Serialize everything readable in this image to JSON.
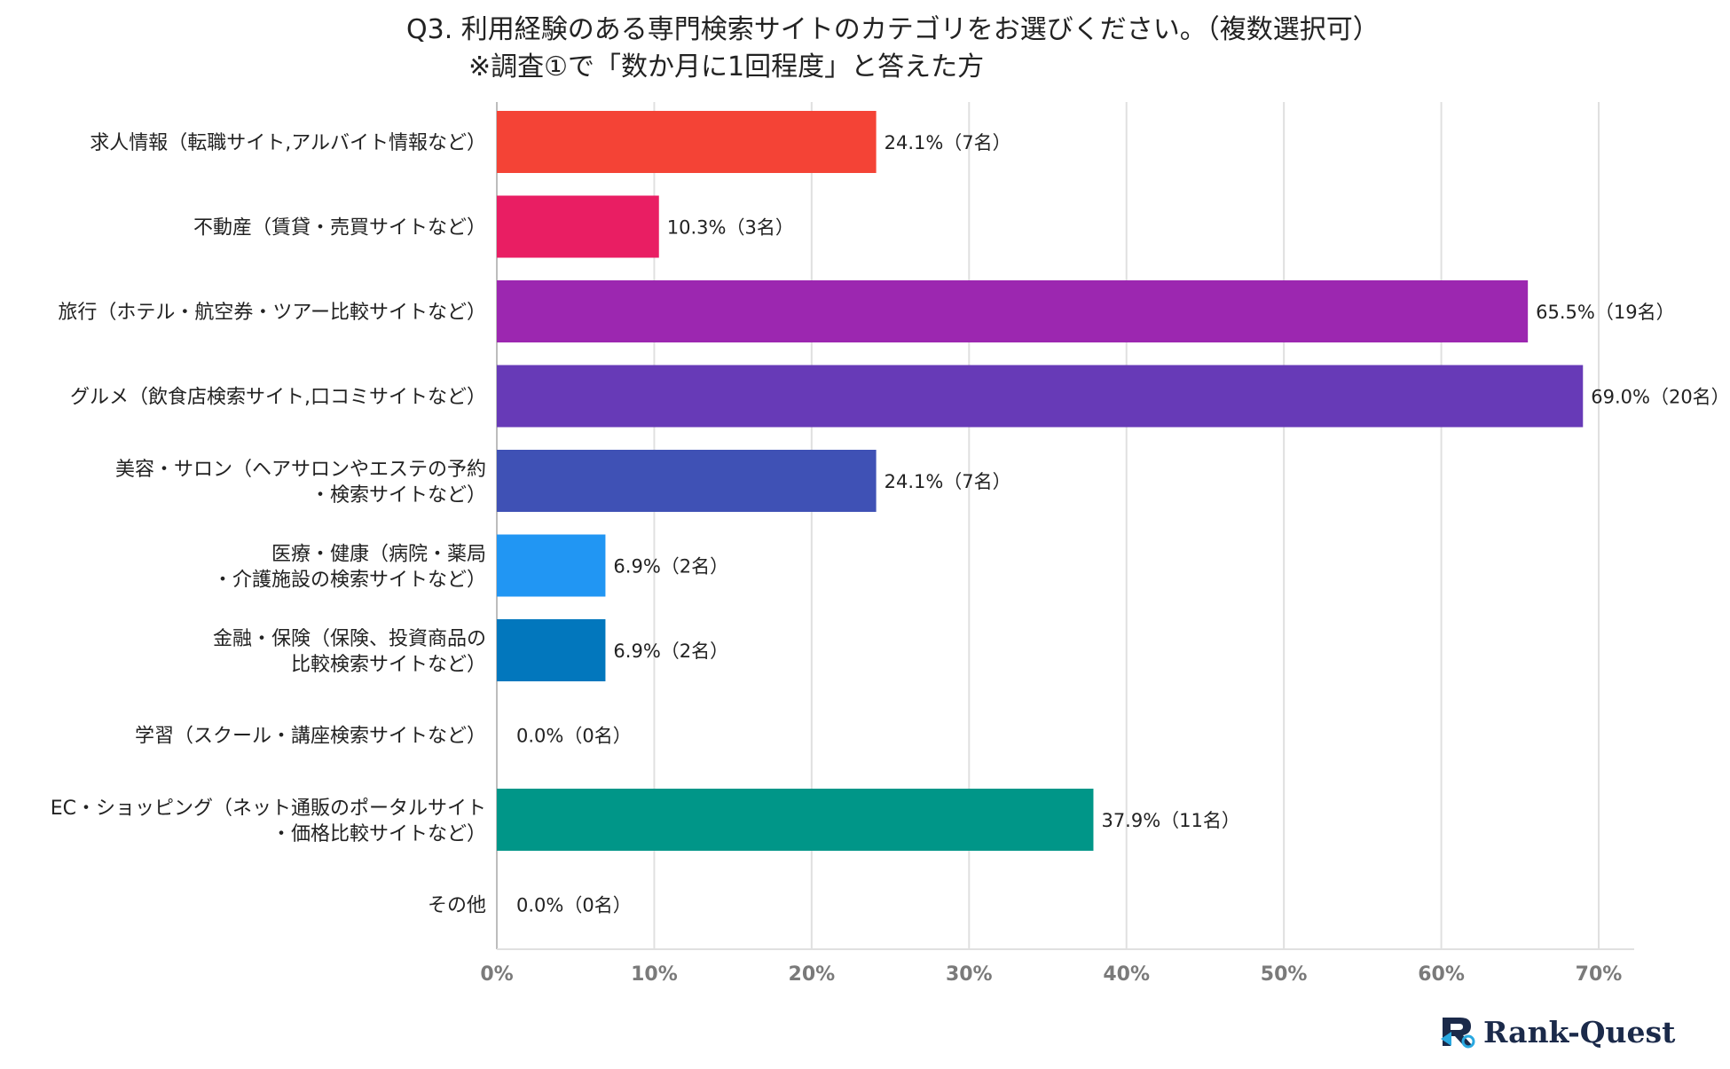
{
  "chart_data": {
    "type": "bar",
    "orientation": "horizontal",
    "title": "Q3. 利用経験のある専門検索サイトのカテゴリをお選びください。（複数選択可）",
    "subtitle": "※調査①で「数か月に1回程度」と答えた方",
    "categories": [
      [
        "求人情報（転職サイト,アルバイト情報など）"
      ],
      [
        "不動産（賃貸・売買サイトなど）"
      ],
      [
        "旅行（ホテル・航空券・ツアー比較サイトなど）"
      ],
      [
        "グルメ（飲食店検索サイト,口コミサイトなど）"
      ],
      [
        "美容・サロン（ヘアサロンやエステの予約",
        "・検索サイトなど）"
      ],
      [
        "医療・健康（病院・薬局",
        "・介護施設の検索サイトなど）"
      ],
      [
        "金融・保険（保険、投資商品の",
        "比較検索サイトなど）"
      ],
      [
        "学習（スクール・講座検索サイトなど）"
      ],
      [
        "EC・ショッピング（ネット通販のポータルサイト",
        "・価格比較サイトなど）"
      ],
      [
        "その他"
      ]
    ],
    "values": [
      24.1,
      10.3,
      65.5,
      69.0,
      24.1,
      6.9,
      6.9,
      0.0,
      37.9,
      0.0
    ],
    "data_labels": [
      "24.1%（7名）",
      "10.3%（3名）",
      "65.5%（19名）",
      "69.0%（20名）",
      "24.1%（7名）",
      "6.9%（2名）",
      "6.9%（2名）",
      "0.0%（0名）",
      "37.9%（11名）",
      "0.0%（0名）"
    ],
    "colors": [
      "#f44336",
      "#e91e63",
      "#9c27b0",
      "#673ab7",
      "#3f51b5",
      "#2196f3",
      "#0277bd",
      "#009688",
      "#009688",
      "#009688"
    ],
    "xlim": [
      0,
      70
    ],
    "ticks": [
      0,
      10,
      20,
      30,
      40,
      50,
      60,
      70
    ],
    "tick_labels": [
      "0%",
      "10%",
      "20%",
      "30%",
      "40%",
      "50%",
      "60%",
      "70%"
    ],
    "grid": true,
    "xlabel": "",
    "ylabel": ""
  },
  "brand": {
    "name": "Rank-Quest",
    "icon": "rank-quest-logo-icon"
  },
  "colors": {
    "gridline": "#e0e0e0",
    "axis": "#bdbdbd",
    "tick_text": "#7a7a7a"
  }
}
